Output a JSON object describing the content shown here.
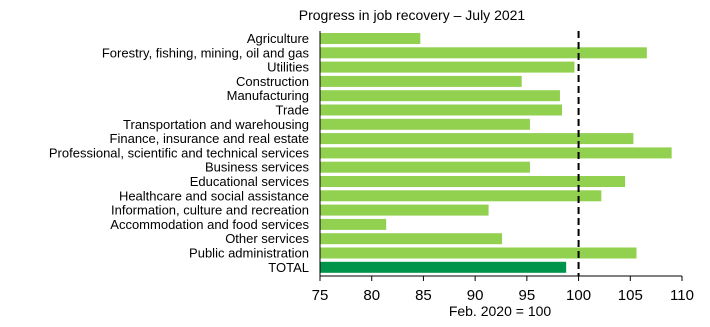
{
  "chart_data": {
    "type": "bar",
    "orientation": "horizontal",
    "title": "Progress in job recovery – July 2021",
    "xlabel": "Feb. 2020 = 100",
    "ylabel": "",
    "xlim": [
      75,
      110
    ],
    "xticks": [
      75,
      80,
      85,
      90,
      95,
      100,
      105,
      110
    ],
    "reference_line": {
      "value": 100,
      "style": "dashed",
      "color": "#000000"
    },
    "grid": false,
    "colors": {
      "bar": "#92D050",
      "total_bar": "#00934A"
    },
    "categories": [
      "Agriculture",
      "Forestry, fishing, mining, oil and gas",
      "Utilities",
      "Construction",
      "Manufacturing",
      "Trade",
      "Transportation and warehousing",
      "Finance, insurance and real estate",
      "Professional, scientific and technical services",
      "Business services",
      "Educational services",
      "Healthcare and social assistance",
      "Information, culture and recreation",
      "Accommodation and food services",
      "Other services",
      "Public administration",
      "TOTAL"
    ],
    "values": [
      84.7,
      106.6,
      99.6,
      94.5,
      98.2,
      98.4,
      95.3,
      105.3,
      109.0,
      95.3,
      104.5,
      102.2,
      91.3,
      81.4,
      92.6,
      105.6,
      98.8
    ]
  }
}
